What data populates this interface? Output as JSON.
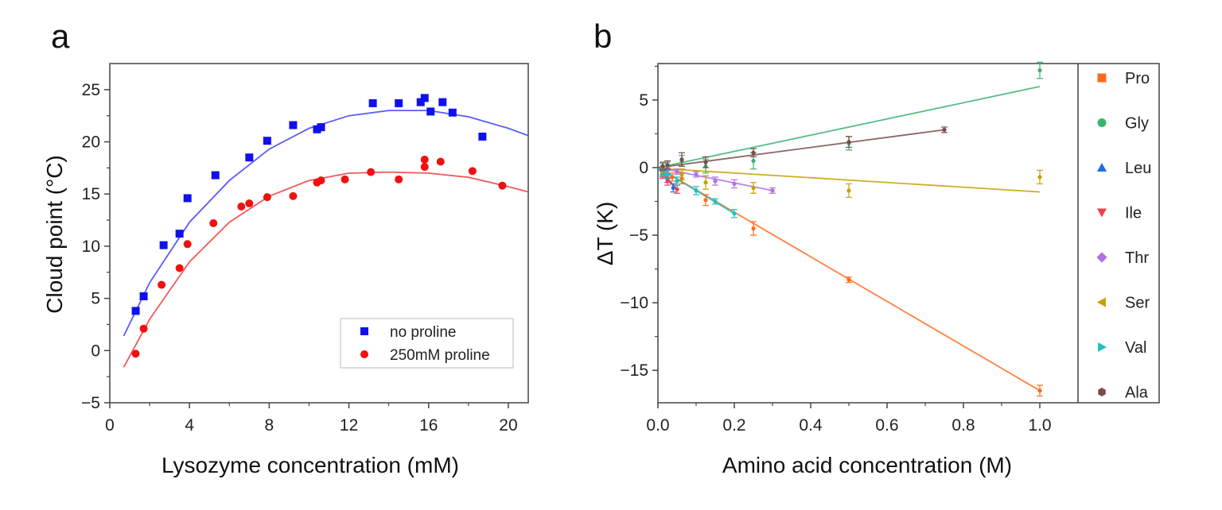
{
  "chart_data": [
    {
      "panel_label": "a",
      "type": "scatter",
      "xlabel": "Lysozyme concentration (mM)",
      "ylabel": "Cloud point (°C)",
      "xlim": [
        0,
        21
      ],
      "ylim": [
        -5,
        27.5
      ],
      "xticks": [
        0,
        4,
        8,
        12,
        16,
        20
      ],
      "yticks": [
        -5,
        0,
        5,
        10,
        15,
        20,
        25
      ],
      "grid": false,
      "legend_placement": "bottom-right",
      "series": [
        {
          "name": "no proline",
          "marker": "square",
          "color": "#1010ee",
          "points": [
            [
              1.3,
              3.8
            ],
            [
              1.7,
              5.2
            ],
            [
              2.7,
              10.1
            ],
            [
              3.5,
              11.2
            ],
            [
              3.9,
              14.6
            ],
            [
              5.3,
              16.8
            ],
            [
              7.0,
              18.5
            ],
            [
              7.9,
              20.1
            ],
            [
              9.2,
              21.6
            ],
            [
              10.4,
              21.2
            ],
            [
              10.6,
              21.4
            ],
            [
              13.2,
              23.7
            ],
            [
              14.5,
              23.7
            ],
            [
              15.6,
              23.8
            ],
            [
              15.8,
              24.2
            ],
            [
              16.1,
              22.9
            ],
            [
              16.7,
              23.8
            ],
            [
              17.2,
              22.8
            ],
            [
              18.7,
              20.5
            ]
          ],
          "fit": [
            [
              0.7,
              1.4
            ],
            [
              2,
              6.5
            ],
            [
              4,
              12.3
            ],
            [
              6,
              16.3
            ],
            [
              8,
              19.3
            ],
            [
              10,
              21.3
            ],
            [
              12,
              22.5
            ],
            [
              14,
              23.0
            ],
            [
              16,
              23.0
            ],
            [
              18,
              22.4
            ],
            [
              20,
              21.3
            ],
            [
              21,
              20.6
            ]
          ],
          "fit_color": "#5a5aff"
        },
        {
          "name": "250mM proline",
          "marker": "circle",
          "color": "#f01010",
          "points": [
            [
              1.3,
              -0.3
            ],
            [
              1.7,
              2.1
            ],
            [
              2.6,
              6.3
            ],
            [
              3.5,
              7.9
            ],
            [
              3.9,
              10.2
            ],
            [
              5.2,
              12.2
            ],
            [
              6.6,
              13.8
            ],
            [
              7.0,
              14.1
            ],
            [
              7.9,
              14.7
            ],
            [
              9.2,
              14.8
            ],
            [
              10.4,
              16.1
            ],
            [
              10.6,
              16.3
            ],
            [
              11.8,
              16.4
            ],
            [
              13.1,
              17.1
            ],
            [
              14.5,
              16.4
            ],
            [
              15.8,
              17.6
            ],
            [
              15.8,
              18.3
            ],
            [
              16.6,
              18.1
            ],
            [
              18.2,
              17.2
            ],
            [
              19.7,
              15.8
            ]
          ],
          "fit": [
            [
              0.7,
              -1.6
            ],
            [
              2,
              3.0
            ],
            [
              4,
              8.5
            ],
            [
              6,
              12.3
            ],
            [
              8,
              14.8
            ],
            [
              10,
              16.3
            ],
            [
              12,
              17.0
            ],
            [
              14,
              17.1
            ],
            [
              16,
              17.0
            ],
            [
              18,
              16.6
            ],
            [
              20,
              15.7
            ],
            [
              21,
              15.2
            ]
          ],
          "fit_color": "#f05a5a"
        }
      ]
    },
    {
      "panel_label": "b",
      "type": "scatter",
      "xlabel": "Amino acid concentration (M)",
      "ylabel": "ΔT (K)",
      "xlim": [
        0,
        1.1
      ],
      "ylim": [
        -17.4,
        7.7
      ],
      "xticks": [
        "0.0",
        "0.2",
        "0.4",
        "0.6",
        "0.8",
        "1.0"
      ],
      "yticks": [
        -15,
        -10,
        -5,
        0,
        5
      ],
      "grid": false,
      "legend_placement": "right-outside",
      "series": [
        {
          "name": "Pro",
          "marker": "square",
          "color": "#ff6a1a",
          "fit": [
            [
              0,
              0
            ],
            [
              1.0,
              -16.5
            ]
          ],
          "points": [
            [
              0.0125,
              -0.3,
              0.3
            ],
            [
              0.025,
              -0.5,
              0.3
            ],
            [
              0.0375,
              -0.7,
              0.3
            ],
            [
              0.0625,
              -0.8,
              0.4
            ],
            [
              0.125,
              -2.4,
              0.4
            ],
            [
              0.25,
              -4.5,
              0.5
            ],
            [
              0.5,
              -8.3,
              0.2
            ],
            [
              1.0,
              -16.5,
              0.4
            ]
          ]
        },
        {
          "name": "Gly",
          "marker": "circle",
          "color": "#3cb371",
          "fit": [
            [
              0,
              0
            ],
            [
              1.0,
              6.0
            ]
          ],
          "points": [
            [
              0.0125,
              0.0,
              0.3
            ],
            [
              0.025,
              0.1,
              0.3
            ],
            [
              0.0625,
              0.5,
              0.4
            ],
            [
              0.125,
              0.1,
              0.5
            ],
            [
              0.25,
              0.5,
              0.6
            ],
            [
              0.5,
              1.8,
              0.5
            ],
            [
              1.0,
              7.2,
              0.6
            ]
          ]
        },
        {
          "name": "Leu",
          "marker": "triangle-up",
          "color": "#1f6fe0",
          "fit": [
            [
              0,
              0
            ],
            [
              0.045,
              -1.5
            ]
          ],
          "points": [
            [
              0.0125,
              -0.4,
              0.3
            ],
            [
              0.025,
              -0.8,
              0.3
            ],
            [
              0.04,
              -1.5,
              0.3
            ]
          ]
        },
        {
          "name": "Ile",
          "marker": "triangle-down",
          "color": "#f04050",
          "fit": [
            [
              0,
              0
            ],
            [
              0.05,
              -1.6
            ]
          ],
          "points": [
            [
              0.0125,
              -0.5,
              0.3
            ],
            [
              0.025,
              -1.0,
              0.3
            ],
            [
              0.05,
              -1.6,
              0.3
            ]
          ]
        },
        {
          "name": "Thr",
          "marker": "diamond",
          "color": "#b070e0",
          "fit": [
            [
              0,
              0
            ],
            [
              0.3,
              -1.7
            ]
          ],
          "points": [
            [
              0.025,
              -0.2,
              0.2
            ],
            [
              0.05,
              -0.3,
              0.2
            ],
            [
              0.1,
              -0.5,
              0.2
            ],
            [
              0.15,
              -1.0,
              0.3
            ],
            [
              0.2,
              -1.2,
              0.3
            ],
            [
              0.3,
              -1.7,
              0.2
            ]
          ]
        },
        {
          "name": "Ser",
          "marker": "triangle-left",
          "color": "#c8a000",
          "fit": [
            [
              0,
              -0.05
            ],
            [
              1.0,
              -1.8
            ]
          ],
          "points": [
            [
              0.0125,
              -0.3,
              0.3
            ],
            [
              0.0625,
              -0.5,
              0.4
            ],
            [
              0.125,
              -1.1,
              0.5
            ],
            [
              0.25,
              -1.5,
              0.4
            ],
            [
              0.5,
              -1.7,
              0.5
            ],
            [
              1.0,
              -0.7,
              0.5
            ]
          ]
        },
        {
          "name": "Val",
          "marker": "triangle-right",
          "color": "#20c0c0",
          "fit": [
            [
              0,
              0
            ],
            [
              0.2,
              -3.4
            ]
          ],
          "points": [
            [
              0.0125,
              -0.2,
              0.3
            ],
            [
              0.025,
              -0.5,
              0.3
            ],
            [
              0.05,
              -1.0,
              0.3
            ],
            [
              0.1,
              -1.7,
              0.3
            ],
            [
              0.15,
              -2.5,
              0.2
            ],
            [
              0.2,
              -3.4,
              0.3
            ]
          ]
        },
        {
          "name": "Ala",
          "marker": "hexagon",
          "color": "#7a4a4a",
          "fit": [
            [
              0,
              0
            ],
            [
              0.75,
              2.8
            ]
          ],
          "points": [
            [
              0.0125,
              0.1,
              0.3
            ],
            [
              0.025,
              0.2,
              0.3
            ],
            [
              0.0625,
              0.6,
              0.5
            ],
            [
              0.125,
              0.4,
              0.4
            ],
            [
              0.25,
              1.1,
              0.3
            ],
            [
              0.5,
              1.9,
              0.4
            ],
            [
              0.75,
              2.8,
              0.2
            ]
          ]
        }
      ]
    }
  ]
}
